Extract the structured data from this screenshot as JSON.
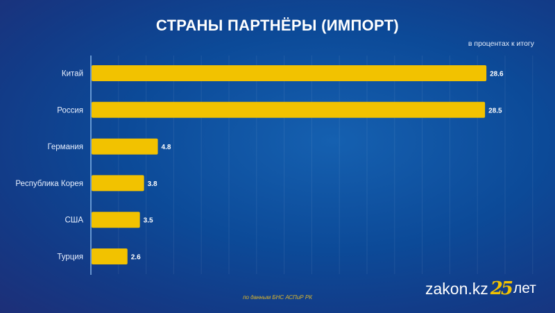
{
  "chart_data": {
    "type": "bar",
    "orientation": "horizontal",
    "title": "СТРАНЫ ПАРТНЁРЫ (ИМПОРТ)",
    "subtitle": "в процентах к итогу",
    "categories": [
      "Китай",
      "Россия",
      "Германия",
      "Республика Корея",
      "США",
      "Турция"
    ],
    "values": [
      28.6,
      28.5,
      4.8,
      3.8,
      3.5,
      2.6
    ],
    "value_labels": [
      "28.6",
      "28.5",
      "4.8",
      "3.8",
      "3.5",
      "2.6"
    ],
    "xlim": [
      0,
      32
    ],
    "grid": true,
    "bar_color": "#f2c200"
  },
  "footer": {
    "source": "по данным БНС АСПиР РК",
    "logo_site": "zakon.kz",
    "logo_number": "25",
    "logo_suffix": "лет"
  }
}
